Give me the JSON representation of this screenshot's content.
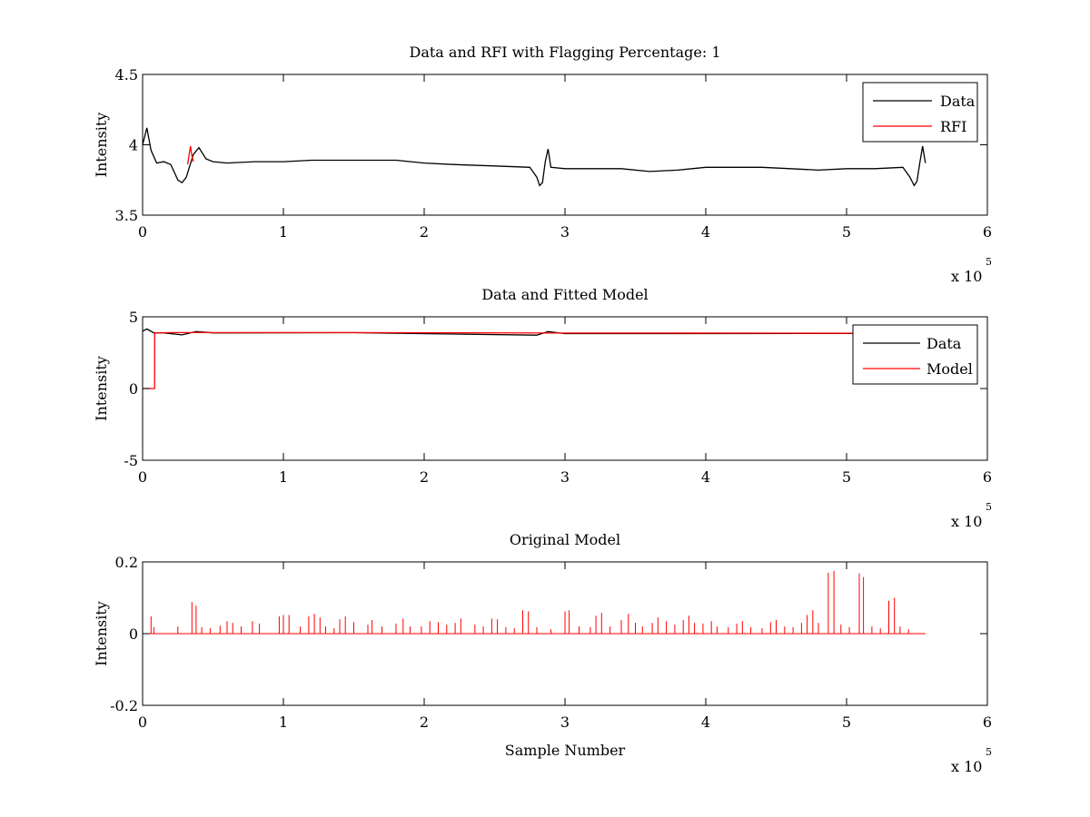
{
  "chart_data": [
    {
      "type": "line",
      "title": "Data and RFI with Flagging Percentage: 1",
      "xlabel": "",
      "ylabel": "Intensity",
      "xlim": [
        0,
        600000
      ],
      "ylim": [
        3.5,
        4.5
      ],
      "x_ticks": [
        0,
        1,
        2,
        3,
        4,
        5,
        6
      ],
      "x_tick_labels": [
        "0",
        "1",
        "2",
        "3",
        "4",
        "5",
        "6"
      ],
      "y_ticks": [
        3.5,
        4,
        4.5
      ],
      "y_tick_labels": [
        "3.5",
        "4",
        "4.5"
      ],
      "x_exponent_label": "x 10",
      "x_exponent_power": "5",
      "grid": false,
      "legend_position": "top-right",
      "legend": [
        "Data",
        "RFI"
      ],
      "series": [
        {
          "name": "Data",
          "color": "#000000",
          "points": [
            [
              0,
              4.0
            ],
            [
              3000,
              4.12
            ],
            [
              6000,
              3.96
            ],
            [
              10000,
              3.87
            ],
            [
              15000,
              3.88
            ],
            [
              20000,
              3.86
            ],
            [
              25000,
              3.75
            ],
            [
              28000,
              3.73
            ],
            [
              31000,
              3.77
            ],
            [
              36000,
              3.93
            ],
            [
              40000,
              3.98
            ],
            [
              45000,
              3.9
            ],
            [
              50000,
              3.88
            ],
            [
              60000,
              3.87
            ],
            [
              80000,
              3.88
            ],
            [
              100000,
              3.88
            ],
            [
              120000,
              3.89
            ],
            [
              150000,
              3.89
            ],
            [
              180000,
              3.89
            ],
            [
              200000,
              3.87
            ],
            [
              220000,
              3.86
            ],
            [
              250000,
              3.85
            ],
            [
              275000,
              3.84
            ],
            [
              280000,
              3.77
            ],
            [
              282000,
              3.71
            ],
            [
              284000,
              3.73
            ],
            [
              286000,
              3.88
            ],
            [
              288000,
              3.97
            ],
            [
              290000,
              3.84
            ],
            [
              300000,
              3.83
            ],
            [
              320000,
              3.83
            ],
            [
              340000,
              3.83
            ],
            [
              360000,
              3.81
            ],
            [
              380000,
              3.82
            ],
            [
              400000,
              3.84
            ],
            [
              420000,
              3.84
            ],
            [
              440000,
              3.84
            ],
            [
              460000,
              3.83
            ],
            [
              480000,
              3.82
            ],
            [
              500000,
              3.83
            ],
            [
              520000,
              3.83
            ],
            [
              540000,
              3.84
            ],
            [
              545000,
              3.77
            ],
            [
              548000,
              3.71
            ],
            [
              550000,
              3.74
            ],
            [
              552000,
              3.87
            ],
            [
              554000,
              3.99
            ],
            [
              556000,
              3.87
            ]
          ]
        },
        {
          "name": "RFI",
          "color": "#ff0000",
          "points": [
            [
              32000,
              3.86
            ],
            [
              33000,
              3.93
            ],
            [
              34000,
              3.99
            ],
            [
              35000,
              3.92
            ],
            [
              36000,
              3.88
            ]
          ]
        }
      ]
    },
    {
      "type": "line",
      "title": "Data and Fitted Model",
      "xlabel": "",
      "ylabel": "Intensity",
      "xlim": [
        0,
        600000
      ],
      "ylim": [
        -5,
        5
      ],
      "x_ticks": [
        0,
        1,
        2,
        3,
        4,
        5,
        6
      ],
      "x_tick_labels": [
        "0",
        "1",
        "2",
        "3",
        "4",
        "5",
        "6"
      ],
      "y_ticks": [
        -5,
        0,
        5
      ],
      "y_tick_labels": [
        "-5",
        "0",
        "5"
      ],
      "x_exponent_label": "x 10",
      "x_exponent_power": "5",
      "grid": false,
      "legend_position": "top-right",
      "legend": [
        "Data",
        "Model"
      ],
      "series": [
        {
          "name": "Data",
          "color": "#000000",
          "points": [
            [
              0,
              4.0
            ],
            [
              3000,
              4.15
            ],
            [
              8000,
              3.88
            ],
            [
              15000,
              3.88
            ],
            [
              28000,
              3.74
            ],
            [
              38000,
              3.97
            ],
            [
              50000,
              3.88
            ],
            [
              150000,
              3.89
            ],
            [
              280000,
              3.72
            ],
            [
              288000,
              3.97
            ],
            [
              300000,
              3.83
            ],
            [
              540000,
              3.84
            ],
            [
              548000,
              3.72
            ],
            [
              556000,
              3.87
            ],
            [
              560000,
              3.85
            ]
          ]
        },
        {
          "name": "Model",
          "color": "#ff0000",
          "points": [
            [
              0,
              0
            ],
            [
              8500,
              0
            ],
            [
              8600,
              3.88
            ],
            [
              20000,
              3.9
            ],
            [
              150000,
              3.9
            ],
            [
              300000,
              3.87
            ],
            [
              450000,
              3.86
            ],
            [
              560000,
              3.85
            ]
          ]
        }
      ]
    },
    {
      "type": "line",
      "title": "Original Model",
      "xlabel": "Sample Number",
      "ylabel": "Intensity",
      "xlim": [
        0,
        600000
      ],
      "ylim": [
        -0.2,
        0.2
      ],
      "x_ticks": [
        0,
        1,
        2,
        3,
        4,
        5,
        6
      ],
      "x_tick_labels": [
        "0",
        "1",
        "2",
        "3",
        "4",
        "5",
        "6"
      ],
      "y_ticks": [
        -0.2,
        0,
        0.2
      ],
      "y_tick_labels": [
        "-0.2",
        "0",
        "0.2"
      ],
      "x_exponent_label": "x 10",
      "x_exponent_power": "5",
      "grid": false,
      "series": [
        {
          "color": "#ff0000",
          "baseline": 0,
          "x_end": 556000,
          "spikes": [
            [
              6000,
              0.048
            ],
            [
              8000,
              0.018
            ],
            [
              25000,
              0.02
            ],
            [
              35000,
              0.088
            ],
            [
              38000,
              0.078
            ],
            [
              42000,
              0.018
            ],
            [
              48000,
              0.015
            ],
            [
              55000,
              0.022
            ],
            [
              60000,
              0.035
            ],
            [
              64000,
              0.03
            ],
            [
              70000,
              0.02
            ],
            [
              78000,
              0.035
            ],
            [
              83000,
              0.028
            ],
            [
              97000,
              0.048
            ],
            [
              100000,
              0.052
            ],
            [
              104000,
              0.052
            ],
            [
              112000,
              0.02
            ],
            [
              118000,
              0.048
            ],
            [
              122000,
              0.055
            ],
            [
              126000,
              0.045
            ],
            [
              130000,
              0.02
            ],
            [
              136000,
              0.015
            ],
            [
              140000,
              0.04
            ],
            [
              144000,
              0.048
            ],
            [
              150000,
              0.032
            ],
            [
              160000,
              0.025
            ],
            [
              163000,
              0.038
            ],
            [
              170000,
              0.02
            ],
            [
              180000,
              0.028
            ],
            [
              185000,
              0.042
            ],
            [
              190000,
              0.02
            ],
            [
              198000,
              0.02
            ],
            [
              204000,
              0.035
            ],
            [
              210000,
              0.032
            ],
            [
              216000,
              0.025
            ],
            [
              222000,
              0.03
            ],
            [
              226000,
              0.042
            ],
            [
              236000,
              0.025
            ],
            [
              242000,
              0.02
            ],
            [
              248000,
              0.042
            ],
            [
              252000,
              0.04
            ],
            [
              258000,
              0.018
            ],
            [
              264000,
              0.015
            ],
            [
              270000,
              0.065
            ],
            [
              274000,
              0.062
            ],
            [
              280000,
              0.018
            ],
            [
              290000,
              0.012
            ],
            [
              300000,
              0.062
            ],
            [
              303000,
              0.065
            ],
            [
              310000,
              0.02
            ],
            [
              318000,
              0.018
            ],
            [
              322000,
              0.05
            ],
            [
              326000,
              0.058
            ],
            [
              332000,
              0.02
            ],
            [
              340000,
              0.038
            ],
            [
              345000,
              0.055
            ],
            [
              350000,
              0.03
            ],
            [
              355000,
              0.02
            ],
            [
              362000,
              0.03
            ],
            [
              366000,
              0.045
            ],
            [
              372000,
              0.035
            ],
            [
              378000,
              0.025
            ],
            [
              384000,
              0.038
            ],
            [
              388000,
              0.05
            ],
            [
              392000,
              0.03
            ],
            [
              398000,
              0.028
            ],
            [
              404000,
              0.035
            ],
            [
              408000,
              0.02
            ],
            [
              416000,
              0.018
            ],
            [
              422000,
              0.028
            ],
            [
              426000,
              0.035
            ],
            [
              432000,
              0.018
            ],
            [
              440000,
              0.015
            ],
            [
              446000,
              0.032
            ],
            [
              450000,
              0.038
            ],
            [
              456000,
              0.02
            ],
            [
              462000,
              0.018
            ],
            [
              468000,
              0.03
            ],
            [
              472000,
              0.052
            ],
            [
              476000,
              0.065
            ],
            [
              480000,
              0.03
            ],
            [
              487000,
              0.17
            ],
            [
              491000,
              0.175
            ],
            [
              496000,
              0.025
            ],
            [
              502000,
              0.018
            ],
            [
              509000,
              0.168
            ],
            [
              512000,
              0.158
            ],
            [
              518000,
              0.02
            ],
            [
              524000,
              0.015
            ],
            [
              530000,
              0.092
            ],
            [
              534000,
              0.1
            ],
            [
              538000,
              0.02
            ],
            [
              544000,
              0.012
            ]
          ]
        }
      ]
    }
  ]
}
